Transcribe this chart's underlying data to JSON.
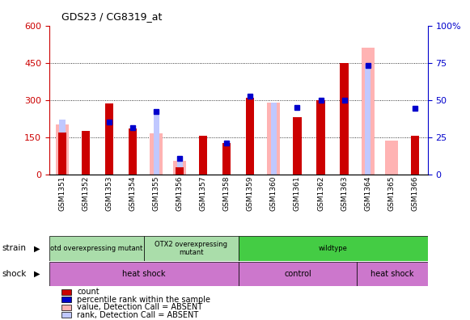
{
  "title": "GDS23 / CG8319_at",
  "samples": [
    "GSM1351",
    "GSM1352",
    "GSM1353",
    "GSM1354",
    "GSM1355",
    "GSM1356",
    "GSM1357",
    "GSM1358",
    "GSM1359",
    "GSM1360",
    "GSM1361",
    "GSM1362",
    "GSM1363",
    "GSM1364",
    "GSM1365",
    "GSM1366"
  ],
  "count": [
    170,
    175,
    285,
    185,
    0,
    30,
    155,
    125,
    310,
    0,
    230,
    300,
    450,
    0,
    0,
    155
  ],
  "absent_value": [
    200,
    0,
    0,
    0,
    165,
    55,
    0,
    0,
    0,
    290,
    0,
    0,
    0,
    510,
    135,
    0
  ],
  "absent_rank": [
    220,
    0,
    0,
    0,
    250,
    75,
    0,
    0,
    0,
    290,
    0,
    0,
    0,
    440,
    0,
    0
  ],
  "blue_squares": [
    null,
    null,
    210,
    190,
    255,
    65,
    null,
    125,
    315,
    null,
    270,
    300,
    300,
    440,
    null,
    265
  ],
  "ylim_left": [
    0,
    600
  ],
  "ylim_right": [
    0,
    100
  ],
  "yticks_left": [
    0,
    150,
    300,
    450,
    600
  ],
  "yticks_right": [
    0,
    25,
    50,
    75,
    100
  ],
  "left_color": "#cc0000",
  "right_color": "#0000cc",
  "count_color": "#cc0000",
  "absent_value_color": "#ffb3b3",
  "absent_rank_color": "#c0c8ff",
  "blue_sq_color": "#0000cc",
  "strain_groups": [
    {
      "label": "otd overexpressing mutant",
      "start": 0,
      "end": 4,
      "color": "#aaddaa"
    },
    {
      "label": "OTX2 overexpressing\nmutant",
      "start": 4,
      "end": 8,
      "color": "#aaddaa"
    },
    {
      "label": "wildtype",
      "start": 8,
      "end": 16,
      "color": "#44cc44"
    }
  ],
  "shock_groups": [
    {
      "label": "heat shock",
      "start": 0,
      "end": 8,
      "color": "#cc77cc"
    },
    {
      "label": "control",
      "start": 8,
      "end": 13,
      "color": "#cc77cc"
    },
    {
      "label": "heat shock",
      "start": 13,
      "end": 16,
      "color": "#cc77cc"
    }
  ],
  "legend_items": [
    {
      "label": "count",
      "color": "#cc0000"
    },
    {
      "label": "percentile rank within the sample",
      "color": "#0000cc"
    },
    {
      "label": "value, Detection Call = ABSENT",
      "color": "#ffb3b3"
    },
    {
      "label": "rank, Detection Call = ABSENT",
      "color": "#c0c8ff"
    }
  ]
}
